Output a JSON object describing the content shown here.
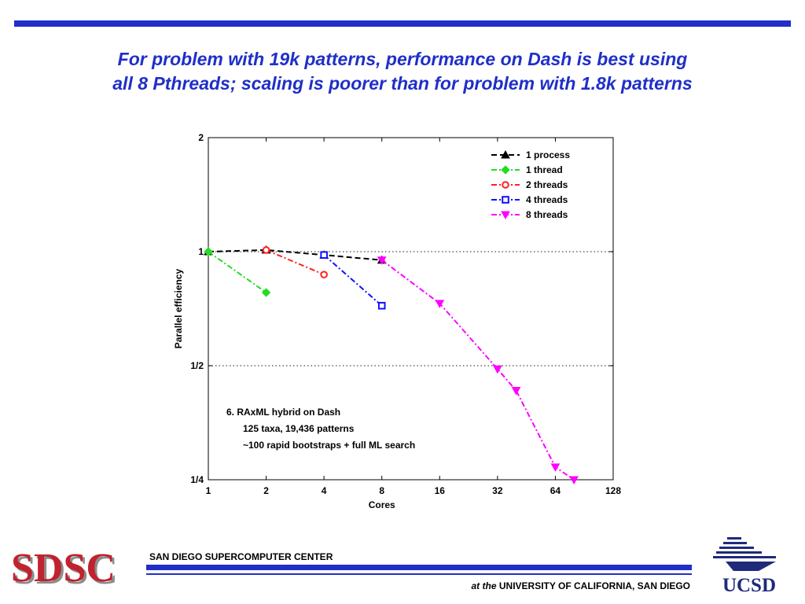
{
  "slide": {
    "title_line1": "For problem with 19k patterns, performance on Dash is best using",
    "title_line2": "all 8 Pthreads; scaling is poorer than for problem with 1.8k patterns",
    "accent_color": "#1f2fc8"
  },
  "footer": {
    "logo_left": "SDSC",
    "center_name": "SAN DIEGO SUPERCOMPUTER CENTER",
    "at_the": "at the",
    "university": "UNIVERSITY OF CALIFORNIA, SAN DIEGO",
    "logo_right": "UCSD",
    "logo_color": "#c0222e"
  },
  "chart_data": {
    "type": "line",
    "xlabel": "Cores",
    "ylabel": "Parallel efficiency",
    "x_scale": "log2",
    "y_scale": "log2",
    "xlim": [
      1,
      128
    ],
    "ylim": [
      0.25,
      2
    ],
    "x_ticks": [
      1,
      2,
      4,
      8,
      16,
      32,
      64,
      128
    ],
    "x_tick_labels": [
      "1",
      "2",
      "4",
      "8",
      "16",
      "32",
      "64",
      "128"
    ],
    "y_ticks": [
      0.25,
      0.5,
      1,
      2
    ],
    "y_tick_labels": [
      "1/4",
      "1/2",
      "1",
      "2"
    ],
    "reference_lines": [
      1,
      0.5
    ],
    "legend_position": "top-right",
    "annotation": [
      "6.  RAxML hybrid on Dash",
      "125 taxa, 19,436 patterns",
      "~100 rapid bootstraps + full ML search"
    ],
    "series": [
      {
        "name": "1 process",
        "color": "#000000",
        "marker": "triangle-up",
        "dash": "dashed",
        "x": [
          1,
          2,
          4,
          8
        ],
        "y": [
          1.0,
          1.01,
          0.98,
          0.95
        ]
      },
      {
        "name": "1 thread",
        "color": "#22dd22",
        "marker": "diamond",
        "dash": "dashdot",
        "x": [
          1,
          2
        ],
        "y": [
          1.0,
          0.78
        ]
      },
      {
        "name": "2 threads",
        "color": "#ff2020",
        "marker": "circle",
        "dash": "dashdot",
        "x": [
          2,
          4
        ],
        "y": [
          1.01,
          0.87
        ]
      },
      {
        "name": "4 threads",
        "color": "#1010ff",
        "marker": "square",
        "dash": "dashdot",
        "x": [
          4,
          8
        ],
        "y": [
          0.98,
          0.72
        ]
      },
      {
        "name": "8 threads",
        "color": "#ff00ff",
        "marker": "triangle-down",
        "dash": "dashdot",
        "x": [
          8,
          16,
          32,
          40,
          64,
          80
        ],
        "y": [
          0.95,
          0.73,
          0.49,
          0.43,
          0.27,
          0.25
        ]
      }
    ]
  }
}
